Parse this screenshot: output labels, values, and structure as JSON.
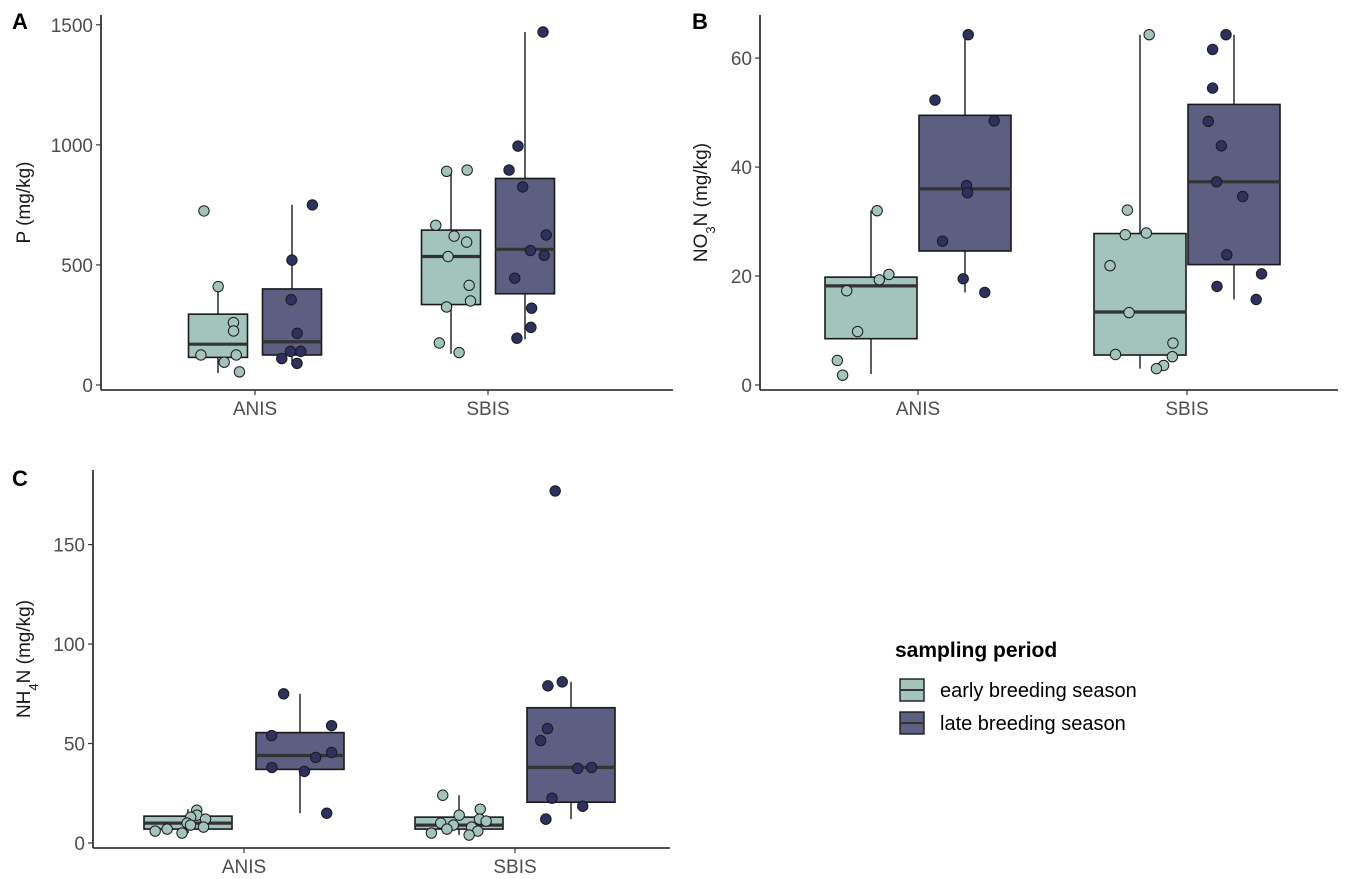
{
  "colors": {
    "early": "#a3c4bc",
    "late": "#5c5f82",
    "early_point": "#a3c4bc",
    "late_point": "#2e3060"
  },
  "legend": {
    "title": "sampling period",
    "items": [
      {
        "label": "early breeding season",
        "color": "#a3c4bc"
      },
      {
        "label": "late breeding season",
        "color": "#2e3060"
      }
    ]
  },
  "chart_data": [
    {
      "type": "box",
      "panel": "A",
      "ylabel": "P (mg/kg)",
      "ylabel_sub": "",
      "ylabel_rest": "",
      "ylim": [
        0,
        1520
      ],
      "yticks": [
        0,
        500,
        1000,
        1500
      ],
      "categories": [
        "ANIS",
        "SBIS"
      ],
      "series": [
        {
          "name": "early breeding season",
          "boxes": [
            {
              "category": "ANIS",
              "min": 50,
              "q1": 115,
              "median": 170,
              "q3": 295,
              "max": 410,
              "points": [
                725,
                410,
                260,
                225,
                125,
                125,
                95,
                55
              ]
            },
            {
              "category": "SBIS",
              "min": 130,
              "q1": 335,
              "median": 535,
              "q3": 645,
              "max": 890,
              "points": [
                890,
                895,
                665,
                620,
                595,
                535,
                415,
                350,
                325,
                175,
                135
              ]
            }
          ]
        },
        {
          "name": "late breeding season",
          "boxes": [
            {
              "category": "ANIS",
              "min": 85,
              "q1": 125,
              "median": 180,
              "q3": 400,
              "max": 750,
              "points": [
                750,
                520,
                355,
                215,
                140,
                140,
                110,
                90
              ]
            },
            {
              "category": "SBIS",
              "min": 190,
              "q1": 380,
              "median": 565,
              "q3": 860,
              "max": 1470,
              "points": [
                1470,
                995,
                895,
                825,
                625,
                560,
                540,
                445,
                320,
                240,
                195
              ]
            }
          ]
        }
      ]
    },
    {
      "type": "box",
      "panel": "B",
      "ylabel": "NO",
      "ylabel_sub": "3",
      "ylabel_rest": "N (mg/kg)",
      "ylim": [
        0,
        67
      ],
      "yticks": [
        0,
        20,
        40,
        60
      ],
      "categories": [
        "ANIS",
        "SBIS"
      ],
      "series": [
        {
          "name": "early breeding season",
          "boxes": [
            {
              "category": "ANIS",
              "min": 2,
              "q1": 8.5,
              "median": 18.2,
              "q3": 19.8,
              "max": 32,
              "points": [
                32,
                20.3,
                19.3,
                17.3,
                9.8,
                4.5,
                1.8
              ]
            },
            {
              "category": "SBIS",
              "min": 3,
              "q1": 5.5,
              "median": 13.4,
              "q3": 27.8,
              "max": 64.3,
              "points": [
                64.3,
                32.1,
                27.9,
                27.6,
                21.9,
                13.3,
                7.7,
                5.6,
                5.2,
                3.6,
                3.0
              ]
            }
          ]
        },
        {
          "name": "late breeding season",
          "boxes": [
            {
              "category": "ANIS",
              "min": 17,
              "q1": 24.6,
              "median": 36,
              "q3": 49.5,
              "max": 64.3,
              "points": [
                64.3,
                52.3,
                48.5,
                36.6,
                35.3,
                26.4,
                19.5,
                17.0
              ]
            },
            {
              "category": "SBIS",
              "min": 15.7,
              "q1": 22.1,
              "median": 37.3,
              "q3": 51.5,
              "max": 64.3,
              "points": [
                64.3,
                61.6,
                54.5,
                48.4,
                43.9,
                37.3,
                34.6,
                23.9,
                20.4,
                18.1,
                15.7
              ]
            }
          ]
        }
      ]
    },
    {
      "type": "box",
      "panel": "C",
      "ylabel": "NH",
      "ylabel_sub": "4",
      "ylabel_rest": "N (mg/kg)",
      "ylim": [
        0,
        185
      ],
      "yticks": [
        0,
        50,
        100,
        150
      ],
      "categories": [
        "ANIS",
        "SBIS"
      ],
      "series": [
        {
          "name": "early breeding season",
          "boxes": [
            {
              "category": "ANIS",
              "min": 5,
              "q1": 7,
              "median": 10,
              "q3": 13.5,
              "max": 17,
              "points": [
                16.5,
                14,
                13,
                12,
                10,
                9,
                8,
                7,
                6,
                5
              ]
            },
            {
              "category": "SBIS",
              "min": 4,
              "q1": 7,
              "median": 9,
              "q3": 13,
              "max": 24,
              "points": [
                24,
                17,
                14,
                12,
                11,
                10,
                9,
                8,
                7,
                6,
                5,
                4
              ]
            }
          ]
        },
        {
          "name": "late breeding season",
          "boxes": [
            {
              "category": "ANIS",
              "min": 15,
              "q1": 37,
              "median": 44,
              "q3": 55.5,
              "max": 75,
              "points": [
                75,
                59,
                54,
                45.5,
                43,
                38,
                36,
                15
              ]
            },
            {
              "category": "SBIS",
              "min": 12,
              "q1": 20.5,
              "median": 38,
              "q3": 68,
              "max": 81,
              "points": [
                177,
                81,
                79,
                57.5,
                51.5,
                38,
                37.5,
                22.5,
                18.5,
                12,
                12
              ]
            }
          ]
        }
      ]
    }
  ]
}
